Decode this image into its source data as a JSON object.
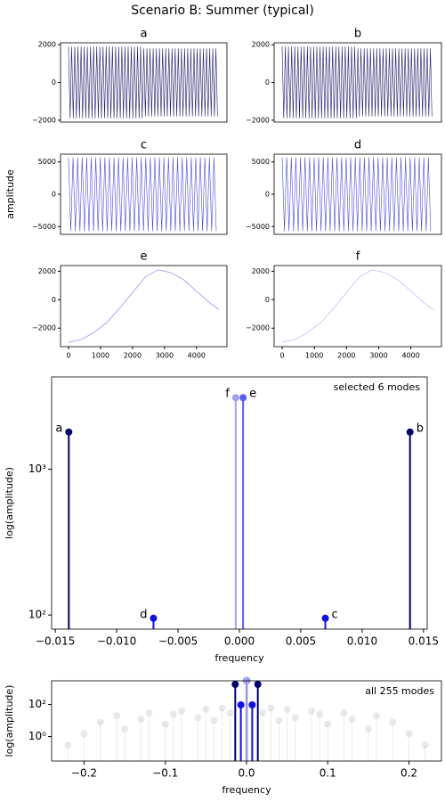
{
  "figure": {
    "title": "Scenario B: Summer (typical)",
    "ylabel": "amplitude"
  },
  "chart_data": [
    {
      "type": "line",
      "title": "a",
      "color": "#1b1b6b",
      "x": [
        0,
        49,
        98,
        147,
        196,
        245,
        294,
        343,
        392,
        441,
        490,
        539,
        588,
        637,
        686,
        735,
        784,
        833,
        882,
        931,
        980,
        1029,
        1078,
        1127,
        1176,
        1225,
        1274,
        1323,
        1372,
        1421,
        1470,
        1519,
        1568,
        1617,
        1666,
        1715,
        1764,
        1813,
        1862,
        1911,
        1960,
        2009,
        2058,
        2107,
        2156,
        2205,
        2254,
        2303,
        2352,
        2401,
        2450,
        2499,
        2548,
        2597,
        2646,
        2695,
        2744,
        2793,
        2842,
        2891,
        2940,
        2989,
        3038,
        3087,
        3136,
        3185,
        3234,
        3283,
        3332,
        3381,
        3430,
        3479,
        3528,
        3577,
        3626,
        3675,
        3724,
        3773,
        3822,
        3871,
        3920,
        3969,
        4018,
        4067,
        4116,
        4165,
        4214,
        4263,
        4312,
        4361,
        4410,
        4459,
        4508,
        4557,
        4606,
        4655
      ],
      "values": [
        1900,
        -1900,
        1900,
        -1900,
        1900,
        -1900,
        1900,
        -1900,
        1900,
        -1900,
        1900,
        -1900,
        1900,
        -1900,
        1900,
        -1900,
        1900,
        -1900,
        1900,
        -1900,
        1900,
        -1900,
        1900,
        -1900,
        1900,
        -1900,
        1900,
        -1900,
        1900,
        -1900,
        1900,
        -1900,
        1900,
        -1900,
        1900,
        -1900,
        1900,
        -1900,
        1900,
        -1900,
        1900,
        -1900,
        1900,
        -1900,
        1900,
        -1900,
        1900,
        -1900,
        1800,
        -1800,
        1800,
        -1800,
        1800,
        -1800,
        1800,
        -1800,
        1800,
        -1800,
        1800,
        -1800,
        1800,
        -1800,
        1800,
        -1800,
        1800,
        -1800,
        1800,
        -1800,
        1800,
        -1800,
        1800,
        -1800,
        1800,
        -1800,
        1800,
        -1800,
        1800,
        -1800,
        1800,
        -1800,
        1800,
        -1800,
        1800,
        -1800,
        1800,
        -1800,
        1800,
        -1800,
        1800,
        -1800,
        1800,
        -1800,
        1800,
        -1800,
        1800,
        -1800
      ],
      "xlim": [
        -250,
        4950
      ],
      "ylim": [
        -2100,
        2100
      ],
      "yticks": [
        {
          "value": -2000,
          "label": "−2000"
        },
        0,
        2000
      ]
    },
    {
      "type": "line",
      "title": "b",
      "color": "#1b1b6b",
      "x": [
        0,
        49,
        98,
        147,
        196,
        245,
        294,
        343,
        392,
        441,
        490,
        539,
        588,
        637,
        686,
        735,
        784,
        833,
        882,
        931,
        980,
        1029,
        1078,
        1127,
        1176,
        1225,
        1274,
        1323,
        1372,
        1421,
        1470,
        1519,
        1568,
        1617,
        1666,
        1715,
        1764,
        1813,
        1862,
        1911,
        1960,
        2009,
        2058,
        2107,
        2156,
        2205,
        2254,
        2303,
        2352,
        2401,
        2450,
        2499,
        2548,
        2597,
        2646,
        2695,
        2744,
        2793,
        2842,
        2891,
        2940,
        2989,
        3038,
        3087,
        3136,
        3185,
        3234,
        3283,
        3332,
        3381,
        3430,
        3479,
        3528,
        3577,
        3626,
        3675,
        3724,
        3773,
        3822,
        3871,
        3920,
        3969,
        4018,
        4067,
        4116,
        4165,
        4214,
        4263,
        4312,
        4361,
        4410,
        4459,
        4508,
        4557,
        4606,
        4655
      ],
      "values": [
        1900,
        -1900,
        1900,
        -1900,
        1900,
        -1900,
        1900,
        -1900,
        1900,
        -1900,
        1900,
        -1900,
        1900,
        -1900,
        1900,
        -1900,
        1900,
        -1900,
        1900,
        -1900,
        1900,
        -1900,
        1900,
        -1900,
        1900,
        -1900,
        1900,
        -1900,
        1900,
        -1900,
        1900,
        -1900,
        1900,
        -1900,
        1900,
        -1900,
        1900,
        -1900,
        1900,
        -1900,
        1900,
        -1900,
        1900,
        -1900,
        1900,
        -1900,
        1900,
        -1900,
        1800,
        -1800,
        1800,
        -1800,
        1800,
        -1800,
        1800,
        -1800,
        1800,
        -1800,
        1800,
        -1800,
        1800,
        -1800,
        1800,
        -1800,
        1800,
        -1800,
        1800,
        -1800,
        1800,
        -1800,
        1800,
        -1800,
        1800,
        -1800,
        1800,
        -1800,
        1800,
        -1800,
        1800,
        -1800,
        1800,
        -1800,
        1800,
        -1800,
        1800,
        -1800,
        1800,
        -1800,
        1800,
        -1800,
        1800,
        -1800,
        1800,
        -1800,
        1800,
        -1800
      ],
      "xlim": [
        -250,
        4950
      ],
      "ylim": [
        -2100,
        2100
      ],
      "yticks": [
        {
          "value": -2000,
          "label": "−2000"
        },
        0,
        2000
      ]
    },
    {
      "type": "line",
      "title": "c",
      "color": "#4a4ad8",
      "x": [
        0,
        71,
        142,
        213,
        284,
        355,
        426,
        497,
        568,
        639,
        710,
        781,
        852,
        923,
        994,
        1065,
        1136,
        1207,
        1278,
        1349,
        1420,
        1491,
        1562,
        1633,
        1704,
        1775,
        1846,
        1917,
        1988,
        2059,
        2130,
        2201,
        2272,
        2343,
        2414,
        2485,
        2556,
        2627,
        2698,
        2769,
        2840,
        2911,
        2982,
        3053,
        3124,
        3195,
        3266,
        3337,
        3408,
        3479,
        3550,
        3621,
        3692,
        3763,
        3834,
        3905,
        3976,
        4047,
        4118,
        4189,
        4260,
        4331,
        4402,
        4473,
        4544,
        4615
      ],
      "values": [
        5700,
        -5700,
        5700,
        -5700,
        5700,
        -5700,
        5700,
        -5700,
        5700,
        -5700,
        5700,
        -5700,
        5700,
        -5700,
        5700,
        -5700,
        5700,
        -5700,
        5700,
        -5700,
        5700,
        -5700,
        5700,
        -5700,
        5700,
        -5700,
        5700,
        -5700,
        5700,
        -5700,
        5700,
        -5700,
        5700,
        -5700,
        5700,
        -5700,
        5700,
        -5700,
        5700,
        -5700,
        5700,
        -5700,
        5700,
        -5700,
        5700,
        -5700,
        5700,
        -5700,
        5700,
        -5700,
        5700,
        -5700,
        5700,
        -5700,
        5700,
        -5700,
        5700,
        -5700,
        5700,
        -5700,
        5700,
        -5700,
        5700,
        -5700,
        5700,
        -5700
      ],
      "xlim": [
        -250,
        4950
      ],
      "ylim": [
        -6200,
        6200
      ],
      "yticks": [
        {
          "value": -5000,
          "label": "−5000"
        },
        0,
        5000
      ]
    },
    {
      "type": "line",
      "title": "d",
      "color": "#4a4ad8",
      "x": [
        0,
        71,
        142,
        213,
        284,
        355,
        426,
        497,
        568,
        639,
        710,
        781,
        852,
        923,
        994,
        1065,
        1136,
        1207,
        1278,
        1349,
        1420,
        1491,
        1562,
        1633,
        1704,
        1775,
        1846,
        1917,
        1988,
        2059,
        2130,
        2201,
        2272,
        2343,
        2414,
        2485,
        2556,
        2627,
        2698,
        2769,
        2840,
        2911,
        2982,
        3053,
        3124,
        3195,
        3266,
        3337,
        3408,
        3479,
        3550,
        3621,
        3692,
        3763,
        3834,
        3905,
        3976,
        4047,
        4118,
        4189,
        4260,
        4331,
        4402,
        4473,
        4544,
        4615
      ],
      "values": [
        5700,
        -5700,
        5700,
        -5700,
        5700,
        -5700,
        5700,
        -5700,
        5700,
        -5700,
        5700,
        -5700,
        5700,
        -5700,
        5700,
        -5700,
        5700,
        -5700,
        5700,
        -5700,
        5700,
        -5700,
        5700,
        -5700,
        5700,
        -5700,
        5700,
        -5700,
        5700,
        -5700,
        5700,
        -5700,
        5700,
        -5700,
        5700,
        -5700,
        5700,
        -5700,
        5700,
        -5700,
        5700,
        -5700,
        5700,
        -5700,
        5700,
        -5700,
        5700,
        -5700,
        5700,
        -5700,
        5700,
        -5700,
        5700,
        -5700,
        5700,
        -5700,
        5700,
        -5700,
        5700,
        -5700,
        5700,
        -5700,
        5700,
        -5700,
        5700,
        -5700
      ],
      "xlim": [
        -250,
        4950
      ],
      "ylim": [
        -6200,
        6200
      ],
      "yticks": [
        {
          "value": -5000,
          "label": "−5000"
        },
        0,
        5000
      ]
    },
    {
      "type": "line",
      "title": "e",
      "color": "#7070e8",
      "x": [
        0,
        400,
        800,
        1200,
        1600,
        2000,
        2400,
        2800,
        3200,
        3600,
        4000,
        4400,
        4700
      ],
      "values": [
        -3000,
        -2800,
        -2300,
        -1600,
        -600,
        500,
        1600,
        2100,
        1900,
        1400,
        600,
        -200,
        -700
      ],
      "xlim": [
        -250,
        4950
      ],
      "ylim": [
        -3300,
        2400
      ],
      "xticks": [
        0,
        1000,
        2000,
        3000,
        4000
      ],
      "yticks": [
        {
          "value": -2000,
          "label": "−2000"
        },
        0,
        2000
      ]
    },
    {
      "type": "line",
      "title": "f",
      "color": "#a8a8f4",
      "x": [
        0,
        400,
        800,
        1200,
        1600,
        2000,
        2400,
        2800,
        3200,
        3600,
        4000,
        4400,
        4700
      ],
      "values": [
        -3000,
        -2800,
        -2300,
        -1600,
        -600,
        500,
        1600,
        2100,
        1900,
        1400,
        600,
        -200,
        -700
      ],
      "xlim": [
        -250,
        4950
      ],
      "ylim": [
        -3300,
        2400
      ],
      "xticks": [
        0,
        1000,
        2000,
        3000,
        4000
      ],
      "yticks": [
        {
          "value": -2000,
          "label": "−2000"
        },
        0,
        2000
      ]
    },
    {
      "type": "stem",
      "log": true,
      "xlabel": "frequency",
      "ylabel": "log(amplitude)",
      "annotation": "selected 6 modes",
      "series": [
        {
          "x": [
            -0.0139,
            0.0139,
            0.007,
            -0.007,
            0.0003,
            -0.0003
          ],
          "values": [
            1800,
            1800,
            95,
            95,
            3100,
            3100
          ],
          "labels": [
            "a",
            "b",
            "c",
            "d",
            "e",
            "f"
          ],
          "colors": [
            "#00006e",
            "#00006e",
            "#1010e0",
            "#1010e0",
            "#5a5af0",
            "#a0a0f0"
          ]
        }
      ],
      "xlim": [
        -0.0153,
        0.0153
      ],
      "ylim": [
        80,
        4300
      ],
      "xticks": [
        {
          "value": -0.015,
          "label": "−0.015"
        },
        {
          "value": -0.01,
          "label": "−0.010"
        },
        {
          "value": -0.005,
          "label": "−0.005"
        },
        {
          "value": 0,
          "label": "0.000"
        },
        0.005,
        {
          "value": 0.01,
          "label": "0.010"
        },
        0.015
      ],
      "yticks": [
        {
          "value": 100,
          "label": "10²"
        },
        {
          "value": 1000,
          "label": "10³"
        }
      ]
    },
    {
      "type": "stem",
      "log": true,
      "xlabel": "frequency",
      "ylabel": "log(amplitude)",
      "annotation": "all 255 modes",
      "series": [
        {
          "color": "#c8c8c8",
          "faint": true,
          "x": [
            -0.22,
            -0.2,
            -0.18,
            -0.16,
            -0.15,
            -0.13,
            -0.12,
            -0.1,
            -0.09,
            -0.08,
            -0.06,
            -0.05,
            -0.04,
            -0.03,
            -0.02,
            0.02,
            0.03,
            0.04,
            0.05,
            0.06,
            0.08,
            0.09,
            0.1,
            0.12,
            0.13,
            0.15,
            0.16,
            0.18,
            0.2,
            0.22
          ],
          "values": [
            0.3,
            1.5,
            8,
            20,
            3,
            12,
            30,
            6,
            25,
            40,
            15,
            50,
            10,
            60,
            30,
            30,
            60,
            10,
            50,
            15,
            40,
            25,
            6,
            30,
            12,
            3,
            20,
            8,
            1.5,
            0.3
          ]
        },
        {
          "x": [
            -0.0139,
            0.0139,
            0.007,
            -0.007,
            0.0003,
            -0.0003
          ],
          "values": [
            1800,
            1800,
            95,
            95,
            3100,
            3100
          ],
          "colors": [
            "#00006e",
            "#00006e",
            "#1010e0",
            "#1010e0",
            "#5a5af0",
            "#a0a0f0"
          ]
        }
      ],
      "xlim": [
        -0.24,
        0.24
      ],
      "ylim": [
        0.03,
        3000
      ],
      "xticks": [
        {
          "value": -0.2,
          "label": "−0.2"
        },
        {
          "value": -0.1,
          "label": "−0.1"
        },
        {
          "value": 0,
          "label": "0.0"
        },
        0.1,
        0.2
      ],
      "yticks": [
        {
          "value": 1,
          "label": "10⁰"
        },
        {
          "value": 100,
          "label": "10²"
        }
      ]
    }
  ]
}
